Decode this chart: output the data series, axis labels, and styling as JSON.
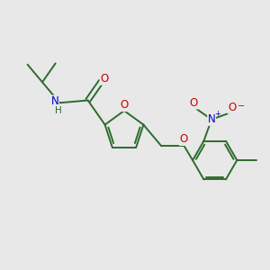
{
  "bg_color": "#e8e8e8",
  "bond_color": "#2d6b2d",
  "o_color": "#cc0000",
  "n_color": "#0000cc",
  "lw": 1.4,
  "figsize": [
    3.0,
    3.0
  ],
  "dpi": 100,
  "xlim": [
    0,
    10
  ],
  "ylim": [
    0,
    10
  ]
}
